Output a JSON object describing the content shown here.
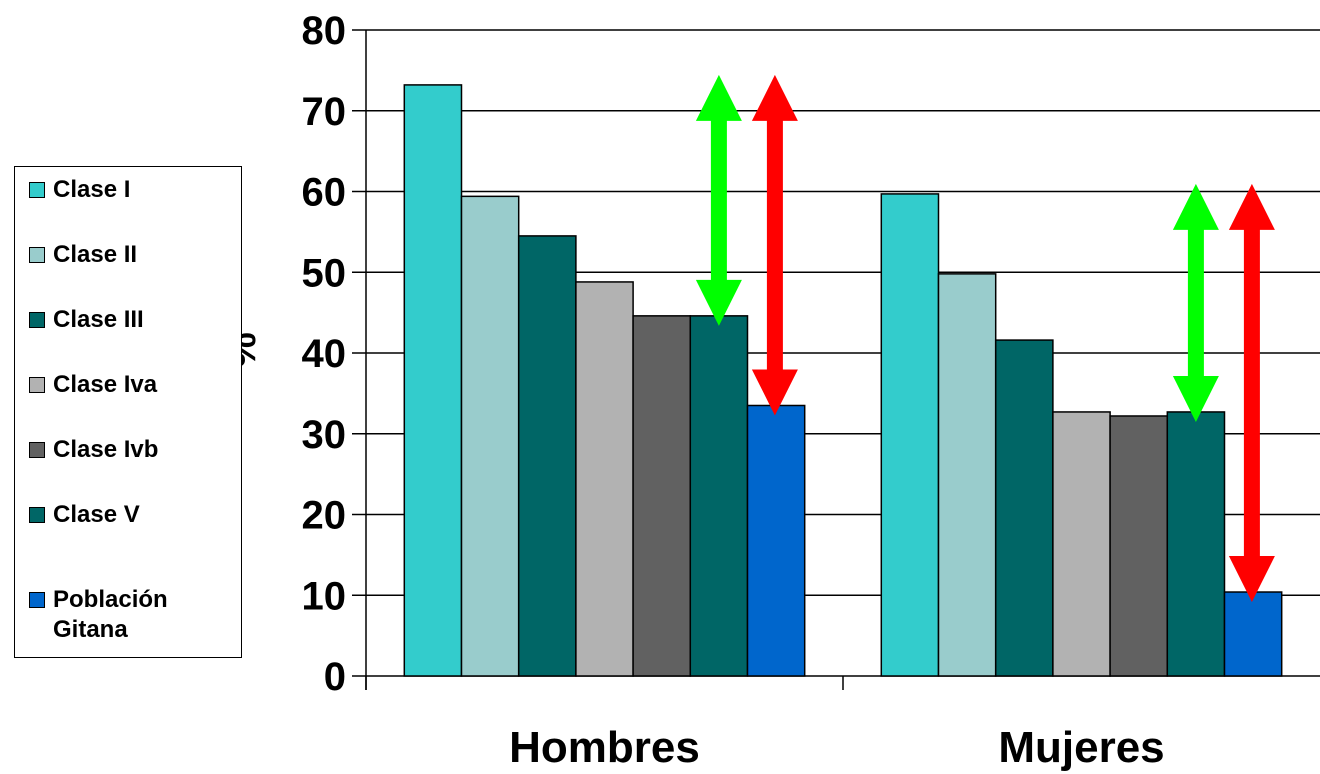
{
  "chart_data": {
    "type": "bar",
    "title": "",
    "xlabel": "",
    "ylabel": "%",
    "ylim": [
      0,
      80
    ],
    "yticks": [
      "0",
      "10",
      "20",
      "30",
      "40",
      "50",
      "60",
      "70",
      "80"
    ],
    "grid": "horizontal",
    "legend_position": "left",
    "categories": [
      "Hombres",
      "Mujeres"
    ],
    "series": [
      {
        "name": "Clase I",
        "color": "#33CCCC",
        "values": [
          73.2,
          59.7
        ]
      },
      {
        "name": "Clase II",
        "color": "#99CCCC",
        "values": [
          59.4,
          49.8
        ]
      },
      {
        "name": "Clase III",
        "color": "#006666",
        "values": [
          54.5,
          41.6
        ]
      },
      {
        "name": "Clase Iva",
        "color": "#B2B2B2",
        "values": [
          48.8,
          32.7
        ]
      },
      {
        "name": "Clase Ivb",
        "color": "#616161",
        "values": [
          44.6,
          32.2
        ]
      },
      {
        "name": "Clase V",
        "color": "#006666",
        "values": [
          44.6,
          32.7
        ]
      },
      {
        "name": "Población Gitana",
        "color": "#0066CC",
        "values": [
          33.5,
          10.4
        ]
      }
    ],
    "annotations": [
      {
        "type": "double-arrow",
        "color": "#00FF00",
        "category": "Hombres",
        "from": 44.6,
        "to": 73.2
      },
      {
        "type": "double-arrow",
        "color": "#FF0000",
        "category": "Hombres",
        "from": 33.5,
        "to": 73.2
      },
      {
        "type": "double-arrow",
        "color": "#00FF00",
        "category": "Mujeres",
        "from": 32.7,
        "to": 59.7
      },
      {
        "type": "double-arrow",
        "color": "#FF0000",
        "category": "Mujeres",
        "from": 10.4,
        "to": 59.7
      }
    ]
  }
}
